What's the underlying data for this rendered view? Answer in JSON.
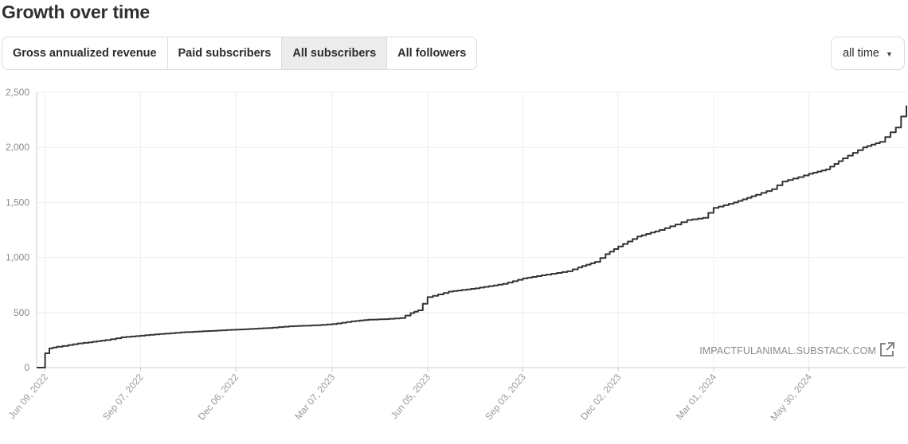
{
  "header": {
    "title": "Growth over time"
  },
  "tabs": [
    {
      "label": "Gross annualized revenue",
      "active": false
    },
    {
      "label": "Paid subscribers",
      "active": false
    },
    {
      "label": "All subscribers",
      "active": true
    },
    {
      "label": "All followers",
      "active": false
    }
  ],
  "range": {
    "selected": "all time",
    "caret": "caret-down-icon"
  },
  "watermark": {
    "text": "IMPACTFULANIMAL.SUBSTACK.COM",
    "icon": "external-link-icon"
  },
  "colors": {
    "line": "#333333",
    "grid": "#eeeeee",
    "axis": "#cccccc",
    "activeTab": "#ececec"
  },
  "chart_data": {
    "type": "line",
    "title": "",
    "xlabel": "",
    "ylabel": "",
    "ylim": [
      0,
      2500
    ],
    "yticks": [
      0,
      500,
      1000,
      1500,
      2000,
      2500
    ],
    "ytick_labels": [
      "0",
      "500",
      "1,000",
      "1,500",
      "2,000",
      "2,500"
    ],
    "xlim": [
      "2022-06-01",
      "2024-08-30"
    ],
    "xticks": [
      "2022-06-09",
      "2022-09-07",
      "2022-12-06",
      "2023-03-07",
      "2023-06-05",
      "2023-09-03",
      "2023-12-02",
      "2024-03-01",
      "2024-05-30"
    ],
    "xtick_labels": [
      "Jun 09, 2022",
      "Sep 07, 2022",
      "Dec 06, 2022",
      "Mar 07, 2023",
      "Jun 05, 2023",
      "Sep 03, 2023",
      "Dec 02, 2023",
      "Mar 01, 2024",
      "May 30, 2024"
    ],
    "grid": true,
    "series": [
      {
        "x": [
          "2022-06-01",
          "2022-06-07",
          "2022-06-09",
          "2022-06-13",
          "2022-06-20",
          "2022-07-01",
          "2022-07-10",
          "2022-07-20",
          "2022-08-05",
          "2022-08-20",
          "2022-09-07",
          "2022-09-25",
          "2022-10-15",
          "2022-11-05",
          "2022-12-06",
          "2023-01-05",
          "2023-01-25",
          "2023-02-20",
          "2023-03-07",
          "2023-03-25",
          "2023-04-10",
          "2023-04-25",
          "2023-05-10",
          "2023-05-20",
          "2023-05-27",
          "2023-06-05",
          "2023-06-25",
          "2023-07-20",
          "2023-08-15",
          "2023-09-03",
          "2023-09-25",
          "2023-10-15",
          "2023-10-25",
          "2023-11-10",
          "2023-11-20",
          "2023-12-02",
          "2023-12-20",
          "2024-01-10",
          "2024-01-25",
          "2024-02-05",
          "2024-02-20",
          "2024-03-01",
          "2024-03-20",
          "2024-04-10",
          "2024-04-25",
          "2024-05-05",
          "2024-05-20",
          "2024-05-30",
          "2024-06-15",
          "2024-07-01",
          "2024-07-20",
          "2024-08-05",
          "2024-08-20",
          "2024-08-30"
        ],
        "y": [
          0,
          0,
          130,
          175,
          190,
          205,
          220,
          230,
          250,
          275,
          290,
          305,
          320,
          330,
          345,
          360,
          375,
          385,
          395,
          420,
          435,
          440,
          450,
          495,
          520,
          640,
          690,
          720,
          760,
          810,
          845,
          875,
          910,
          960,
          1030,
          1100,
          1190,
          1250,
          1300,
          1340,
          1360,
          1450,
          1500,
          1570,
          1620,
          1690,
          1730,
          1760,
          1800,
          1900,
          2000,
          2050,
          2180,
          2380
        ]
      }
    ]
  }
}
